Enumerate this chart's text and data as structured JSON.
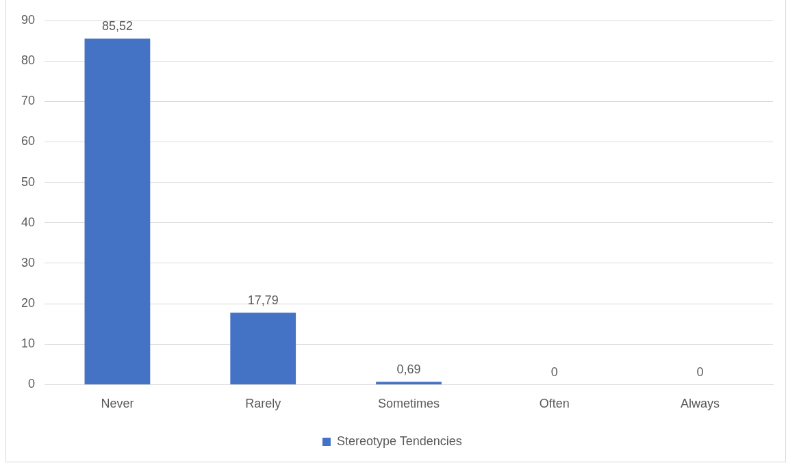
{
  "chart_data": {
    "type": "bar",
    "categories": [
      "Never",
      "Rarely",
      "Sometimes",
      "Often",
      "Always"
    ],
    "series": [
      {
        "name": "Stereotype Tendencies",
        "color": "#4472c4",
        "values": [
          85.52,
          17.79,
          0.69,
          0,
          0
        ],
        "value_labels": [
          "85,52",
          "17,79",
          "0,69",
          "0",
          "0"
        ]
      }
    ],
    "ylim": [
      0,
      90
    ],
    "yticks": [
      0,
      10,
      20,
      30,
      40,
      50,
      60,
      70,
      80,
      90
    ],
    "grid": "y",
    "legend": "bottom"
  }
}
